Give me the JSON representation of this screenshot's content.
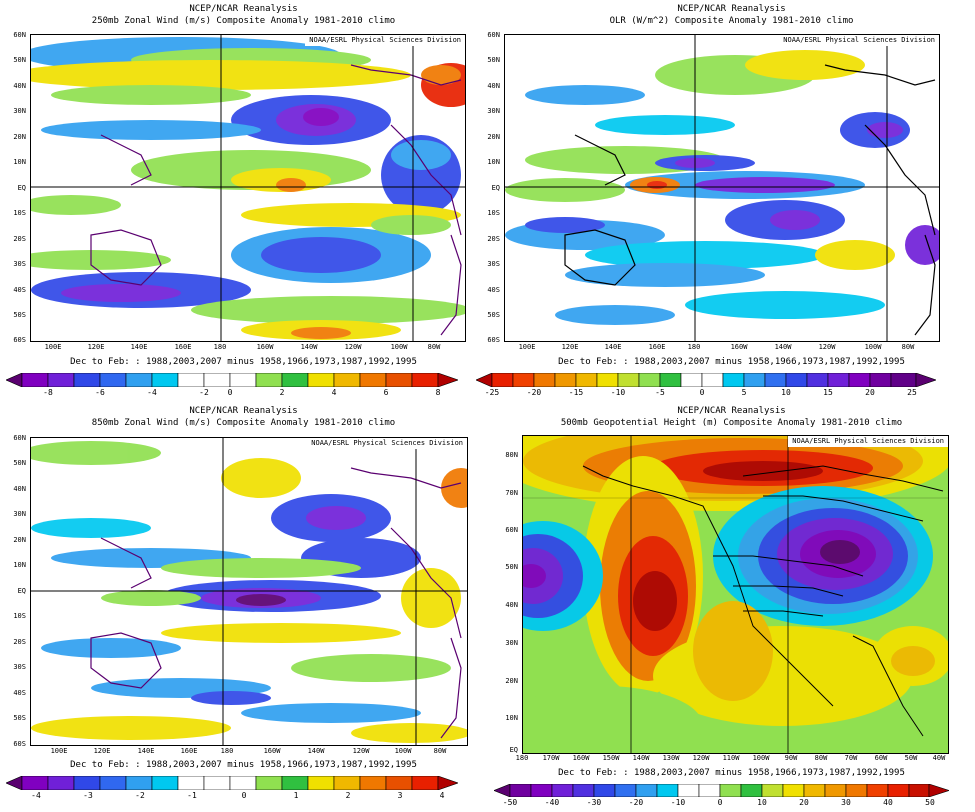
{
  "colors": {
    "purple_dark": "#5a0070",
    "purple": "#8000c0",
    "violet": "#7020d8",
    "blue": "#3048e8",
    "lightblue": "#30a0f0",
    "cyan": "#00c8f0",
    "white": "#ffffff",
    "lightgreen": "#90e050",
    "green": "#30c040",
    "yellow": "#f0e000",
    "gold": "#f0b800",
    "orange": "#f07800",
    "red": "#e82000",
    "darkred": "#b00000"
  },
  "panels": [
    {
      "id": "p250",
      "title": "NCEP/NCAR Reanalysis",
      "subtitle": "250mb Zonal Wind (m/s) Composite Anomaly 1981-2010 climo",
      "credit": "NOAA/ESRL Physical Sciences Division",
      "caption": "Dec to Feb: : 1988,2003,2007 minus 1958,1966,1973,1987,1992,1995",
      "y_ticks": [
        "60N",
        "50N",
        "40N",
        "30N",
        "20N",
        "10N",
        "EQ",
        "10S",
        "20S",
        "30S",
        "40S",
        "50S",
        "60S"
      ],
      "x_ticks": [
        "100E",
        "120E",
        "140E",
        "160E",
        "180",
        "160W",
        "140W",
        "120W",
        "100W",
        "80W"
      ],
      "colorbar_labels": [
        "-8",
        "-6",
        "-4",
        "-2",
        "0",
        "2",
        "4",
        "6",
        "8"
      ]
    },
    {
      "id": "polr",
      "title": "NCEP/NCAR Reanalysis",
      "subtitle": "OLR (W/m^2) Composite Anomaly 1981-2010 climo",
      "credit": "NOAA/ESRL Physical Sciences Division",
      "caption": "Dec to Feb: : 1988,2003,2007 minus 1958,1966,1973,1987,1992,1995",
      "y_ticks": [
        "60N",
        "50N",
        "40N",
        "30N",
        "20N",
        "10N",
        "EQ",
        "10S",
        "20S",
        "30S",
        "40S",
        "50S",
        "60S"
      ],
      "x_ticks": [
        "100E",
        "120E",
        "140E",
        "160E",
        "180",
        "160W",
        "140W",
        "120W",
        "100W",
        "80W"
      ],
      "colorbar_labels": [
        "-25",
        "-20",
        "-15",
        "-10",
        "-5",
        "0",
        "5",
        "10",
        "15",
        "20",
        "25"
      ]
    },
    {
      "id": "p850",
      "title": "NCEP/NCAR Reanalysis",
      "subtitle": "850mb Zonal Wind (m/s) Composite Anomaly 1981-2010 climo",
      "credit": "NOAA/ESRL Physical Sciences Division",
      "caption": "Dec to Feb: : 1988,2003,2007 minus 1958,1966,1973,1987,1992,1995",
      "y_ticks": [
        "60N",
        "50N",
        "40N",
        "30N",
        "20N",
        "10N",
        "EQ",
        "10S",
        "20S",
        "30S",
        "40S",
        "50S",
        "60S"
      ],
      "x_ticks": [
        "100E",
        "120E",
        "140E",
        "160E",
        "180",
        "160W",
        "140W",
        "120W",
        "100W",
        "80W"
      ],
      "colorbar_labels": [
        "-4",
        "-3",
        "-2",
        "-1",
        "0",
        "1",
        "2",
        "3",
        "4"
      ]
    },
    {
      "id": "p500",
      "title": "NCEP/NCAR Reanalysis",
      "subtitle": "500mb Geopotential Height (m) Composite Anomaly 1981-2010 climo",
      "credit": "NOAA/ESRL Physical Sciences Division",
      "caption": "Dec to Feb: : 1988,2003,2007 minus 1958,1966,1973,1987,1992,1995",
      "y_ticks": [
        "80N",
        "70N",
        "60N",
        "50N",
        "40N",
        "30N",
        "20N",
        "10N",
        "EQ"
      ],
      "x_ticks": [
        "180",
        "170W",
        "160W",
        "150W",
        "140W",
        "130W",
        "120W",
        "110W",
        "100W",
        "90W",
        "80W",
        "70W",
        "60W",
        "50W",
        "40W"
      ],
      "colorbar_labels": [
        "-50",
        "-40",
        "-30",
        "-20",
        "-10",
        "0",
        "10",
        "20",
        "30",
        "40",
        "50"
      ]
    }
  ]
}
